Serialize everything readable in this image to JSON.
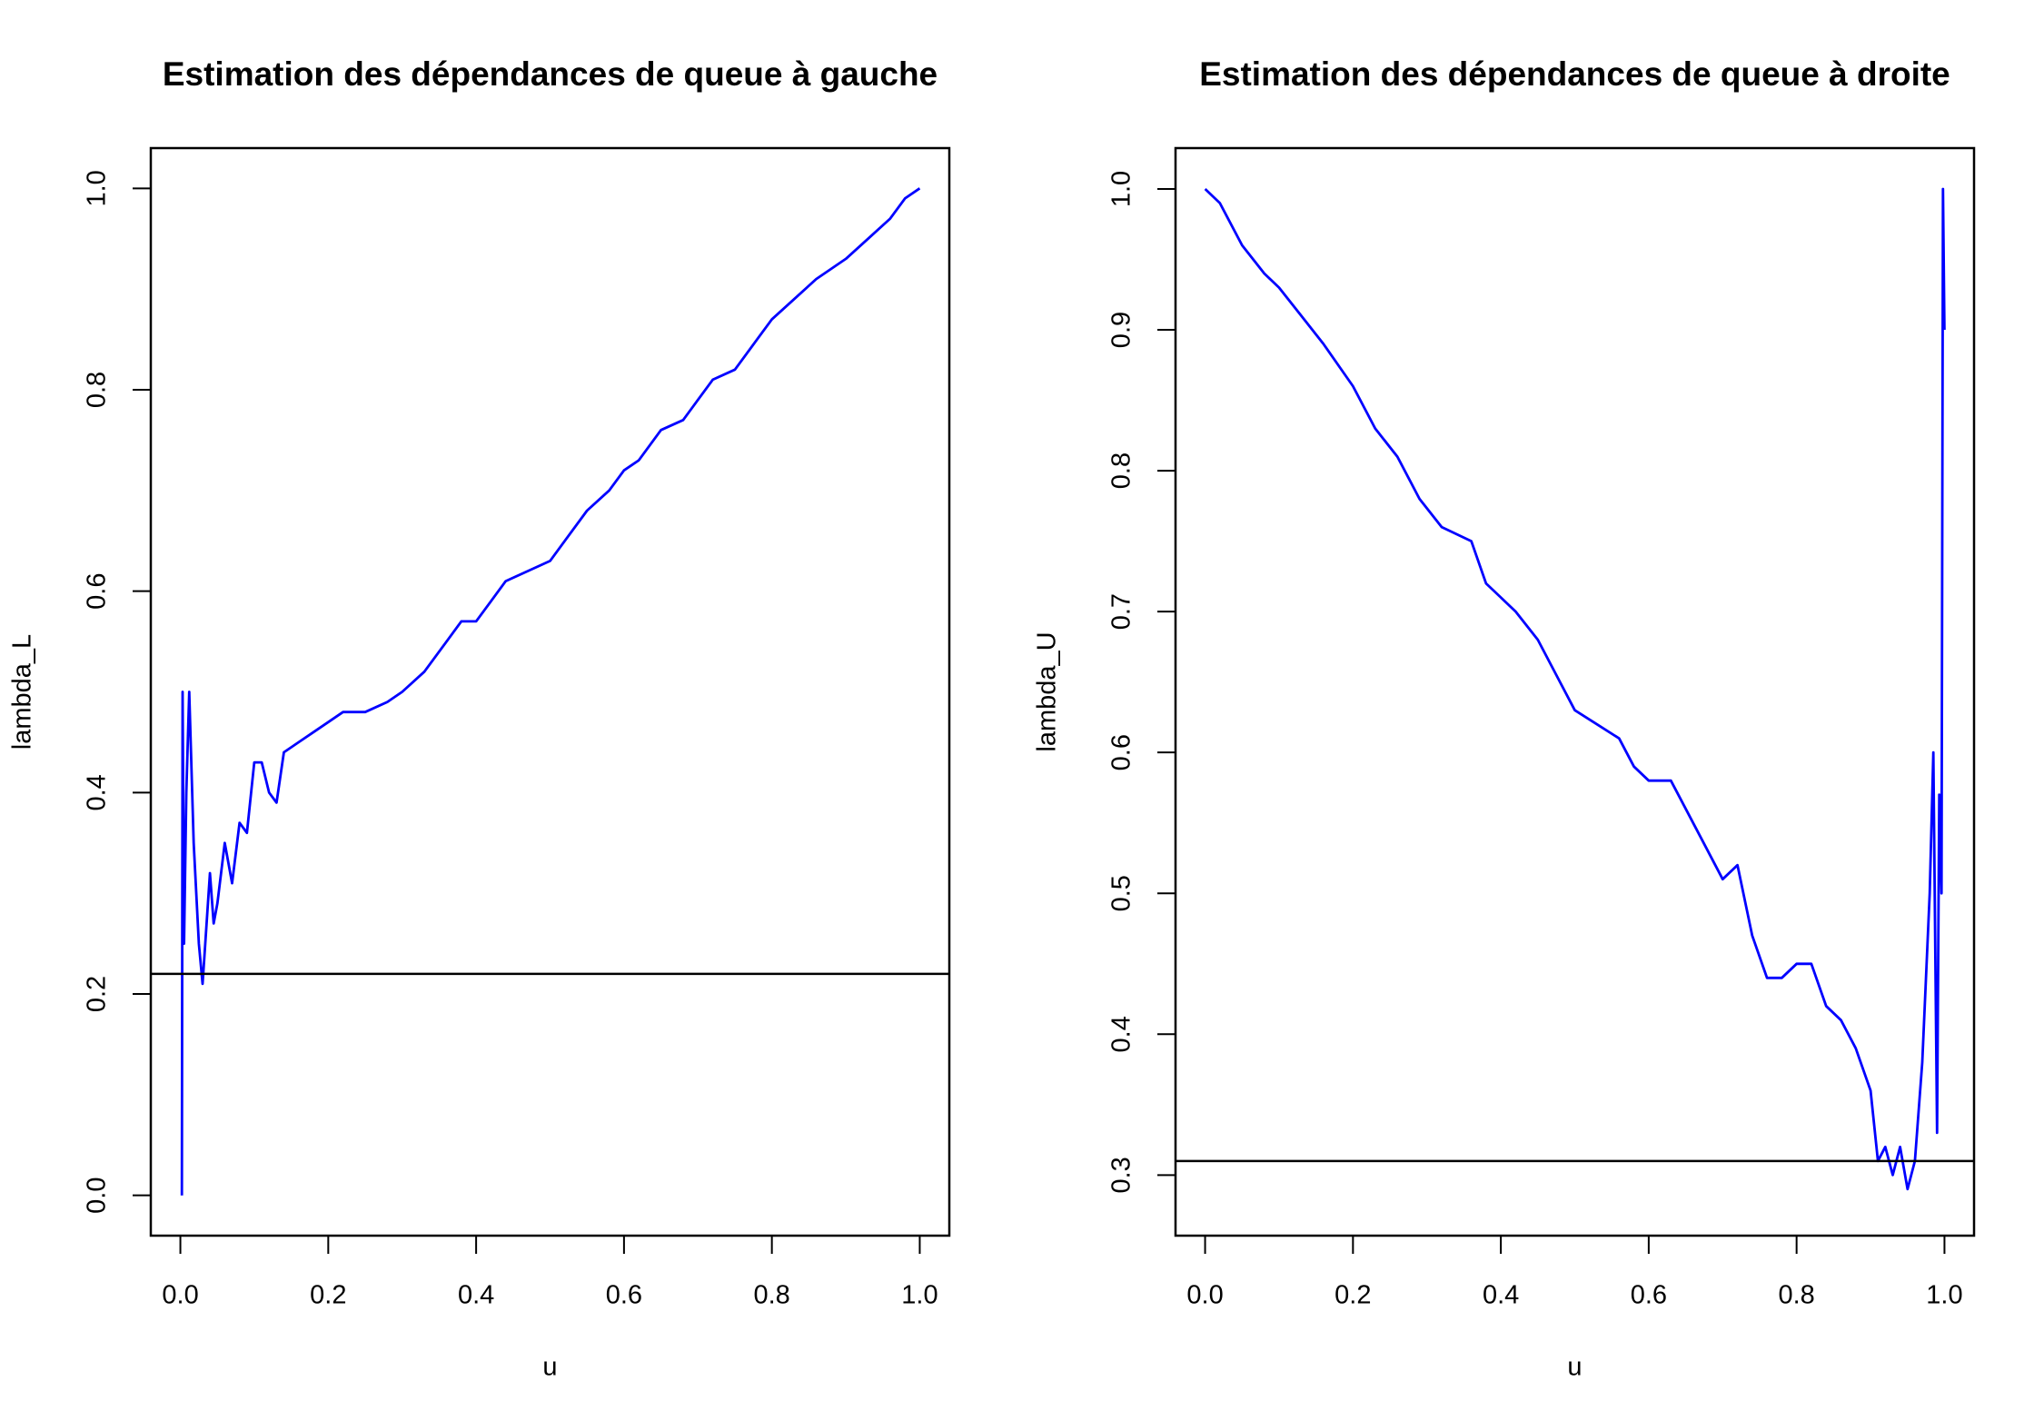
{
  "chart_data": [
    {
      "type": "line",
      "title": "Estimation des dépendances de queue à gauche",
      "xlabel": "u",
      "ylabel": "lambda_L",
      "color": "#0000ff",
      "hline": 0.22,
      "xlim": [
        -0.04,
        1.04
      ],
      "xticks": [
        {
          "value": 0,
          "label": "0.0"
        },
        0.2,
        0.4,
        0.6,
        0.8,
        {
          "value": 1,
          "label": "1.0"
        }
      ],
      "ylim": [
        -0.04,
        1.04
      ],
      "yticks": [
        {
          "value": 0,
          "label": "0.0"
        },
        0.2,
        0.4,
        0.6,
        0.8,
        {
          "value": 1,
          "label": "1.0"
        }
      ],
      "x": [
        0.002,
        0.003,
        0.005,
        0.008,
        0.012,
        0.018,
        0.025,
        0.03,
        0.04,
        0.045,
        0.05,
        0.06,
        0.07,
        0.08,
        0.09,
        0.1,
        0.11,
        0.12,
        0.13,
        0.14,
        0.16,
        0.18,
        0.2,
        0.22,
        0.25,
        0.28,
        0.3,
        0.33,
        0.36,
        0.38,
        0.4,
        0.42,
        0.44,
        0.47,
        0.5,
        0.52,
        0.55,
        0.58,
        0.6,
        0.62,
        0.65,
        0.68,
        0.7,
        0.72,
        0.75,
        0.78,
        0.8,
        0.83,
        0.86,
        0.9,
        0.93,
        0.96,
        0.98,
        1.0
      ],
      "values": [
        0,
        0.5,
        0.25,
        0.4,
        0.5,
        0.35,
        0.25,
        0.21,
        0.32,
        0.27,
        0.29,
        0.35,
        0.31,
        0.37,
        0.36,
        0.43,
        0.43,
        0.4,
        0.39,
        0.44,
        0.45,
        0.46,
        0.47,
        0.48,
        0.48,
        0.49,
        0.5,
        0.52,
        0.55,
        0.57,
        0.57,
        0.59,
        0.61,
        0.62,
        0.63,
        0.65,
        0.68,
        0.7,
        0.72,
        0.73,
        0.76,
        0.77,
        0.79,
        0.81,
        0.82,
        0.85,
        0.87,
        0.89,
        0.91,
        0.93,
        0.95,
        0.97,
        0.99,
        1.0
      ]
    },
    {
      "type": "line",
      "title": "Estimation des dépendances de queue à droite",
      "xlabel": "u",
      "ylabel": "lambda_U",
      "color": "#0000ff",
      "hline": 0.31,
      "xlim": [
        -0.04,
        1.04
      ],
      "xticks": [
        {
          "value": 0,
          "label": "0.0"
        },
        0.2,
        0.4,
        0.6,
        0.8,
        {
          "value": 1,
          "label": "1.0"
        }
      ],
      "ylim": [
        0.257,
        1.029
      ],
      "yticks": [
        0.3,
        0.4,
        0.5,
        0.6,
        0.7,
        0.8,
        0.9,
        {
          "value": 1,
          "label": "1.0"
        }
      ],
      "x": [
        0,
        0.02,
        0.05,
        0.08,
        0.1,
        0.13,
        0.16,
        0.2,
        0.23,
        0.26,
        0.29,
        0.32,
        0.36,
        0.38,
        0.42,
        0.45,
        0.48,
        0.5,
        0.53,
        0.56,
        0.58,
        0.6,
        0.63,
        0.65,
        0.67,
        0.7,
        0.72,
        0.74,
        0.76,
        0.78,
        0.8,
        0.82,
        0.84,
        0.86,
        0.88,
        0.9,
        0.91,
        0.92,
        0.93,
        0.94,
        0.95,
        0.96,
        0.97,
        0.98,
        0.985,
        0.99,
        0.993,
        0.996,
        0.998,
        1.0
      ],
      "values": [
        1.0,
        0.99,
        0.96,
        0.94,
        0.93,
        0.91,
        0.89,
        0.86,
        0.83,
        0.81,
        0.78,
        0.76,
        0.75,
        0.72,
        0.7,
        0.68,
        0.65,
        0.63,
        0.62,
        0.61,
        0.59,
        0.58,
        0.58,
        0.56,
        0.54,
        0.51,
        0.52,
        0.47,
        0.44,
        0.44,
        0.45,
        0.45,
        0.42,
        0.41,
        0.39,
        0.36,
        0.31,
        0.32,
        0.3,
        0.32,
        0.29,
        0.31,
        0.38,
        0.5,
        0.6,
        0.33,
        0.57,
        0.5,
        1.0,
        0.9
      ]
    }
  ]
}
